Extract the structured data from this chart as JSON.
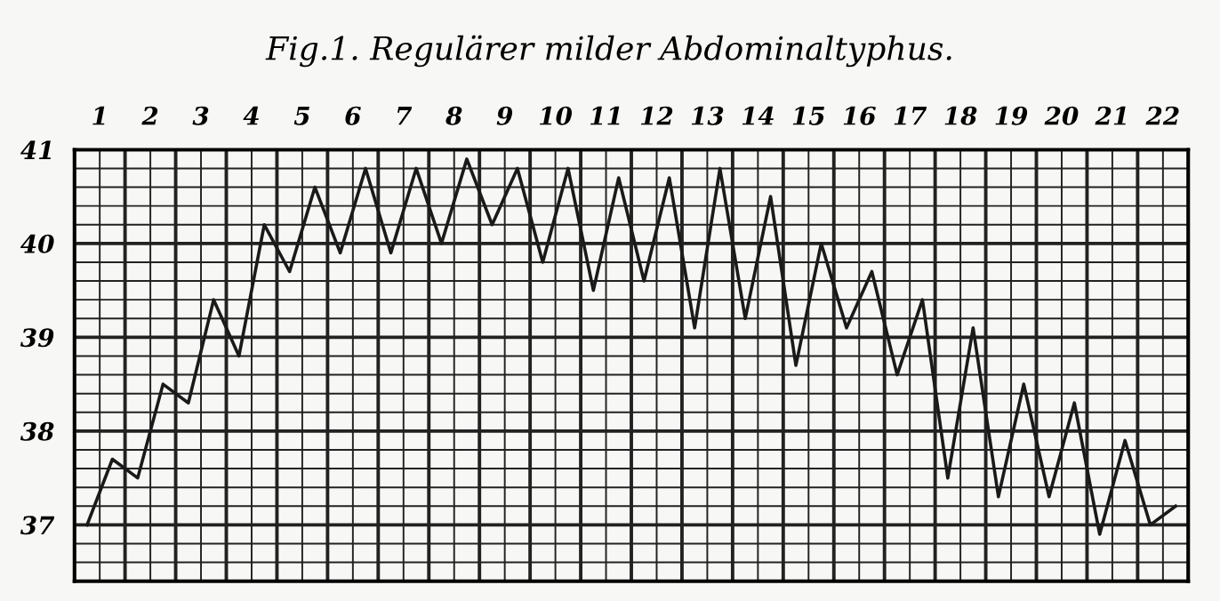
{
  "chart_data": {
    "type": "line",
    "title": "Fig.1. Regulärer milder Abdominaltyphus.",
    "x": [
      0.25,
      0.75,
      1.25,
      1.75,
      2.25,
      2.75,
      3.25,
      3.75,
      4.25,
      4.75,
      5.25,
      5.75,
      6.25,
      6.75,
      7.25,
      7.75,
      8.25,
      8.75,
      9.25,
      9.75,
      10.25,
      10.75,
      11.25,
      11.75,
      12.25,
      12.75,
      13.25,
      13.75,
      14.25,
      14.75,
      15.25,
      15.75,
      16.25,
      16.75,
      17.25,
      17.75,
      18.25,
      18.75,
      19.25,
      19.75,
      20.25,
      20.75,
      21.25,
      21.75
    ],
    "series": [
      {
        "color": "#1a1a1a",
        "values": [
          37.0,
          37.7,
          37.5,
          38.5,
          38.3,
          39.4,
          38.8,
          40.2,
          39.7,
          40.6,
          39.9,
          40.8,
          39.9,
          40.8,
          40.0,
          40.9,
          40.2,
          40.8,
          39.8,
          40.8,
          39.5,
          40.7,
          39.6,
          40.7,
          39.1,
          40.8,
          39.2,
          40.5,
          38.7,
          40.0,
          39.1,
          39.7,
          38.6,
          39.4,
          37.5,
          39.1,
          37.3,
          38.5,
          37.3,
          38.3,
          36.9,
          37.9,
          37.0,
          37.2
        ]
      }
    ],
    "xlim": [
      0,
      22
    ],
    "xticks": [
      {
        "value": 0.5,
        "label": "1"
      },
      {
        "value": 1.5,
        "label": "2"
      },
      {
        "value": 2.5,
        "label": "3"
      },
      {
        "value": 3.5,
        "label": "4"
      },
      {
        "value": 4.5,
        "label": "5"
      },
      {
        "value": 5.5,
        "label": "6"
      },
      {
        "value": 6.5,
        "label": "7"
      },
      {
        "value": 7.5,
        "label": "8"
      },
      {
        "value": 8.5,
        "label": "9"
      },
      {
        "value": 9.5,
        "label": "10"
      },
      {
        "value": 10.5,
        "label": "11"
      },
      {
        "value": 11.5,
        "label": "12"
      },
      {
        "value": 12.5,
        "label": "13"
      },
      {
        "value": 13.5,
        "label": "14"
      },
      {
        "value": 14.5,
        "label": "15"
      },
      {
        "value": 15.5,
        "label": "16"
      },
      {
        "value": 16.5,
        "label": "17"
      },
      {
        "value": 17.5,
        "label": "18"
      },
      {
        "value": 18.5,
        "label": "19"
      },
      {
        "value": 19.5,
        "label": "20"
      },
      {
        "value": 20.5,
        "label": "21"
      },
      {
        "value": 21.5,
        "label": "22"
      }
    ],
    "ylim": [
      36.4,
      41
    ],
    "yticks": [
      37,
      38,
      39,
      40,
      41
    ],
    "grid": true,
    "marker": "none",
    "line_style": "solid",
    "legend": false
  }
}
